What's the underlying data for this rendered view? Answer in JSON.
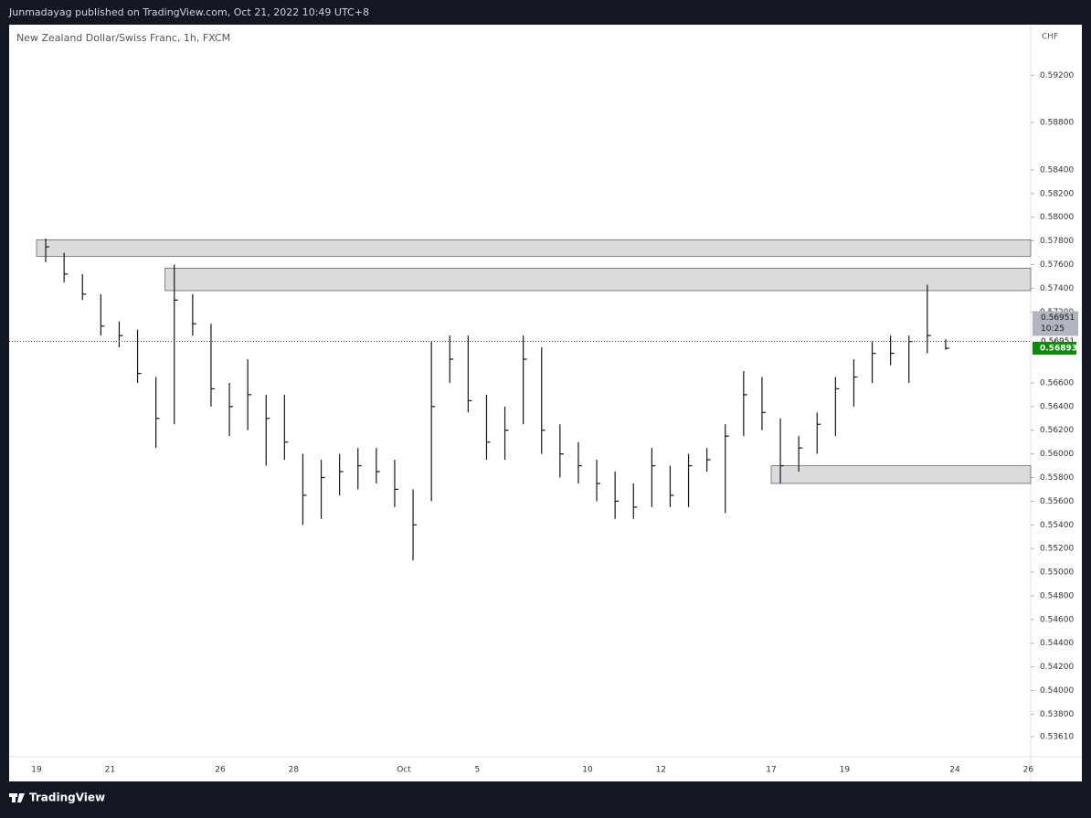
{
  "header": {
    "text": "Junmadayag published on TradingView.com, Oct 21, 2022 10:49 UTC+8"
  },
  "footer": {
    "brand": "TradingView"
  },
  "chart_data": {
    "type": "ohlc",
    "title": "New Zealand Dollar/Swiss Franc, 1h, FXCM",
    "y_axis_label": "CHF",
    "categories": [
      "19",
      null,
      null,
      null,
      "21",
      null,
      null,
      null,
      null,
      null,
      "26",
      null,
      null,
      null,
      "28",
      null,
      null,
      null,
      null,
      null,
      "Oct",
      null,
      null,
      null,
      "5",
      null,
      null,
      null,
      null,
      null,
      "10",
      null,
      null,
      null,
      "12",
      null,
      null,
      null,
      null,
      null,
      "17",
      null,
      null,
      null,
      "19",
      null,
      null,
      null,
      null,
      null,
      "24",
      null,
      null,
      null,
      "26",
      null
    ],
    "high": [
      0.5782,
      0.577,
      0.5752,
      0.5735,
      0.5712,
      0.5705,
      0.5665,
      0.576,
      0.5735,
      0.571,
      0.566,
      0.568,
      0.565,
      0.565,
      0.56,
      0.5595,
      0.56,
      0.5605,
      0.5605,
      0.5595,
      0.557,
      0.5695,
      0.57,
      0.57,
      0.565,
      0.564,
      0.57,
      0.569,
      0.5625,
      0.561,
      0.5595,
      0.5585,
      0.5575,
      0.5605,
      0.559,
      0.56,
      0.5605,
      0.5625,
      0.567,
      0.5665,
      0.563,
      0.5615,
      0.5635,
      0.5665,
      0.568,
      0.5695,
      0.57,
      0.57,
      0.5743,
      0.5697,
      null,
      null,
      null,
      null,
      null,
      null
    ],
    "low": [
      0.5762,
      0.5745,
      0.573,
      0.57,
      0.569,
      0.566,
      0.5605,
      0.5625,
      0.57,
      0.564,
      0.5615,
      0.562,
      0.559,
      0.5595,
      0.554,
      0.5545,
      0.5565,
      0.557,
      0.5575,
      0.5555,
      0.551,
      0.556,
      0.566,
      0.5635,
      0.5595,
      0.5595,
      0.5625,
      0.56,
      0.558,
      0.5575,
      0.556,
      0.5545,
      0.5545,
      0.5555,
      0.5555,
      0.5555,
      0.5585,
      0.555,
      0.5615,
      0.562,
      0.5575,
      0.5585,
      0.56,
      0.5615,
      0.564,
      0.566,
      0.5675,
      0.566,
      0.5685,
      0.5688,
      null,
      null,
      null,
      null,
      null,
      null
    ],
    "close": [
      0.5775,
      0.5752,
      0.5735,
      0.5708,
      0.57,
      0.5668,
      0.563,
      0.573,
      0.571,
      0.5655,
      0.564,
      0.565,
      0.563,
      0.561,
      0.5565,
      0.558,
      0.5585,
      0.559,
      0.5585,
      0.557,
      0.554,
      0.564,
      0.568,
      0.5645,
      0.561,
      0.562,
      0.568,
      0.562,
      0.56,
      0.559,
      0.5575,
      0.556,
      0.5555,
      0.559,
      0.5565,
      0.559,
      0.5595,
      0.5615,
      0.565,
      0.5635,
      0.559,
      0.5605,
      0.5625,
      0.5655,
      0.5665,
      0.5685,
      0.5685,
      0.5695,
      0.57,
      0.56893,
      null,
      null,
      null,
      null,
      null,
      null
    ],
    "color": "#131722",
    "zones": [
      {
        "low": 0.5767,
        "high": 0.5781,
        "start": 0
      },
      {
        "low": 0.5738,
        "high": 0.5757,
        "start": 7
      },
      {
        "low": 0.5575,
        "high": 0.559,
        "start": 40
      }
    ],
    "zone_color": "#dcdcde",
    "last_price": 0.56951,
    "countdown": "10:25",
    "close_price": 0.56893,
    "ylim": [
      0.5344,
      0.5962
    ],
    "yticks": [
      {
        "value": 0.592,
        "label": "0.59200"
      },
      {
        "value": 0.588,
        "label": "0.58800"
      },
      {
        "value": 0.584,
        "label": "0.58400"
      },
      {
        "value": 0.582,
        "label": "0.58200"
      },
      {
        "value": 0.58,
        "label": "0.58000"
      },
      {
        "value": 0.578,
        "label": "0.57800"
      },
      {
        "value": 0.576,
        "label": "0.57600"
      },
      {
        "value": 0.574,
        "label": "0.57400"
      },
      {
        "value": 0.572,
        "label": "0.57200"
      },
      {
        "value": 0.566,
        "label": "0.56600"
      },
      {
        "value": 0.564,
        "label": "0.56400"
      },
      {
        "value": 0.562,
        "label": "0.56200"
      },
      {
        "value": 0.56,
        "label": "0.56000"
      },
      {
        "value": 0.558,
        "label": "0.55800"
      },
      {
        "value": 0.556,
        "label": "0.55600"
      },
      {
        "value": 0.554,
        "label": "0.55400"
      },
      {
        "value": 0.552,
        "label": "0.55200"
      },
      {
        "value": 0.55,
        "label": "0.55000"
      },
      {
        "value": 0.548,
        "label": "0.54800"
      },
      {
        "value": 0.546,
        "label": "0.54600"
      },
      {
        "value": 0.544,
        "label": "0.54400"
      },
      {
        "value": 0.542,
        "label": "0.54200"
      },
      {
        "value": 0.54,
        "label": "0.54000"
      },
      {
        "value": 0.538,
        "label": "0.53800"
      },
      {
        "value": 0.5361,
        "label": "0.53610"
      }
    ]
  }
}
